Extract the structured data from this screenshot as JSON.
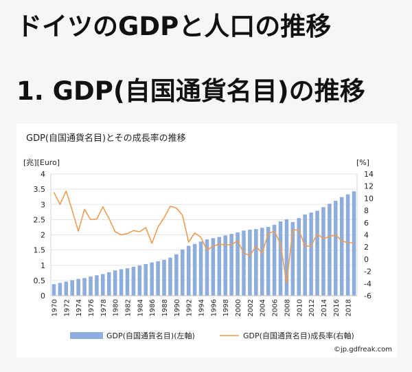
{
  "page": {
    "title": "ドイツのGDPと人口の推移",
    "section_heading": "1. GDP(自国通貨名目)の推移"
  },
  "chart_data": {
    "type": "bar+line",
    "title": "GDP(自国通貨名目)とその成長率の推移",
    "left_unit": "[兆][Euro]",
    "right_unit": "[%]",
    "ylim_left": [
      0,
      4
    ],
    "ylim_right": [
      -6,
      14
    ],
    "left_ticks": [
      0,
      0.5,
      1,
      1.5,
      2,
      2.5,
      3,
      3.5,
      4
    ],
    "left_tick_labels": [
      "0",
      "0.5",
      "1",
      "1.5",
      "2",
      "2.5",
      "3",
      "3.5",
      "4"
    ],
    "right_ticks": [
      -6,
      -4,
      -2,
      0,
      2,
      4,
      6,
      8,
      10,
      12,
      14
    ],
    "right_tick_labels": [
      "-6",
      "-4",
      "-2",
      "0",
      "2",
      "4",
      "6",
      "8",
      "10",
      "12",
      "14"
    ],
    "x_tick_labels": [
      "1970",
      "1972",
      "1974",
      "1976",
      "1978",
      "1980",
      "1982",
      "1984",
      "1986",
      "1988",
      "1990",
      "1992",
      "1994",
      "1996",
      "1998",
      "2000",
      "2002",
      "2004",
      "2006",
      "2008",
      "2010",
      "2012",
      "2014",
      "2016",
      "2018"
    ],
    "years": [
      1970,
      1971,
      1972,
      1973,
      1974,
      1975,
      1976,
      1977,
      1978,
      1979,
      1980,
      1981,
      1982,
      1983,
      1984,
      1985,
      1986,
      1987,
      1988,
      1989,
      1990,
      1991,
      1992,
      1993,
      1994,
      1995,
      1996,
      1997,
      1998,
      1999,
      2000,
      2001,
      2002,
      2003,
      2004,
      2005,
      2006,
      2007,
      2008,
      2009,
      2010,
      2011,
      2012,
      2013,
      2014,
      2015,
      2016,
      2017,
      2018,
      2019
    ],
    "series": [
      {
        "name": "GDP(自国通貨名目)(左軸)",
        "kind": "bar",
        "axis": "left",
        "color": "#8eacdc",
        "values": [
          0.38,
          0.42,
          0.46,
          0.51,
          0.55,
          0.58,
          0.63,
          0.67,
          0.71,
          0.77,
          0.83,
          0.87,
          0.9,
          0.95,
          0.99,
          1.04,
          1.09,
          1.13,
          1.18,
          1.25,
          1.36,
          1.52,
          1.64,
          1.7,
          1.78,
          1.85,
          1.89,
          1.93,
          1.98,
          2.03,
          2.08,
          2.14,
          2.17,
          2.19,
          2.23,
          2.26,
          2.33,
          2.44,
          2.51,
          2.42,
          2.55,
          2.67,
          2.73,
          2.79,
          2.91,
          3.02,
          3.12,
          3.24,
          3.33,
          3.43
        ]
      },
      {
        "name": "GDP(自国通貨名目)成長率(右軸)",
        "kind": "line",
        "axis": "right",
        "color": "#ed9c51",
        "values": [
          11.0,
          9.0,
          11.2,
          8.0,
          4.6,
          8.2,
          6.5,
          6.6,
          8.6,
          6.7,
          4.5,
          4.0,
          4.2,
          4.7,
          4.5,
          5.2,
          2.6,
          5.3,
          6.8,
          8.7,
          8.4,
          7.2,
          2.8,
          4.3,
          3.6,
          1.5,
          2.1,
          2.5,
          2.3,
          2.4,
          3.0,
          1.0,
          0.6,
          2.1,
          1.0,
          4.2,
          4.6,
          2.5,
          -3.9,
          4.8,
          4.8,
          2.1,
          2.2,
          4.1,
          3.4,
          3.7,
          4.0,
          3.0,
          2.7,
          2.7
        ]
      }
    ],
    "legend_position": "bottom",
    "credit": "©jp.gdfreak.com"
  }
}
